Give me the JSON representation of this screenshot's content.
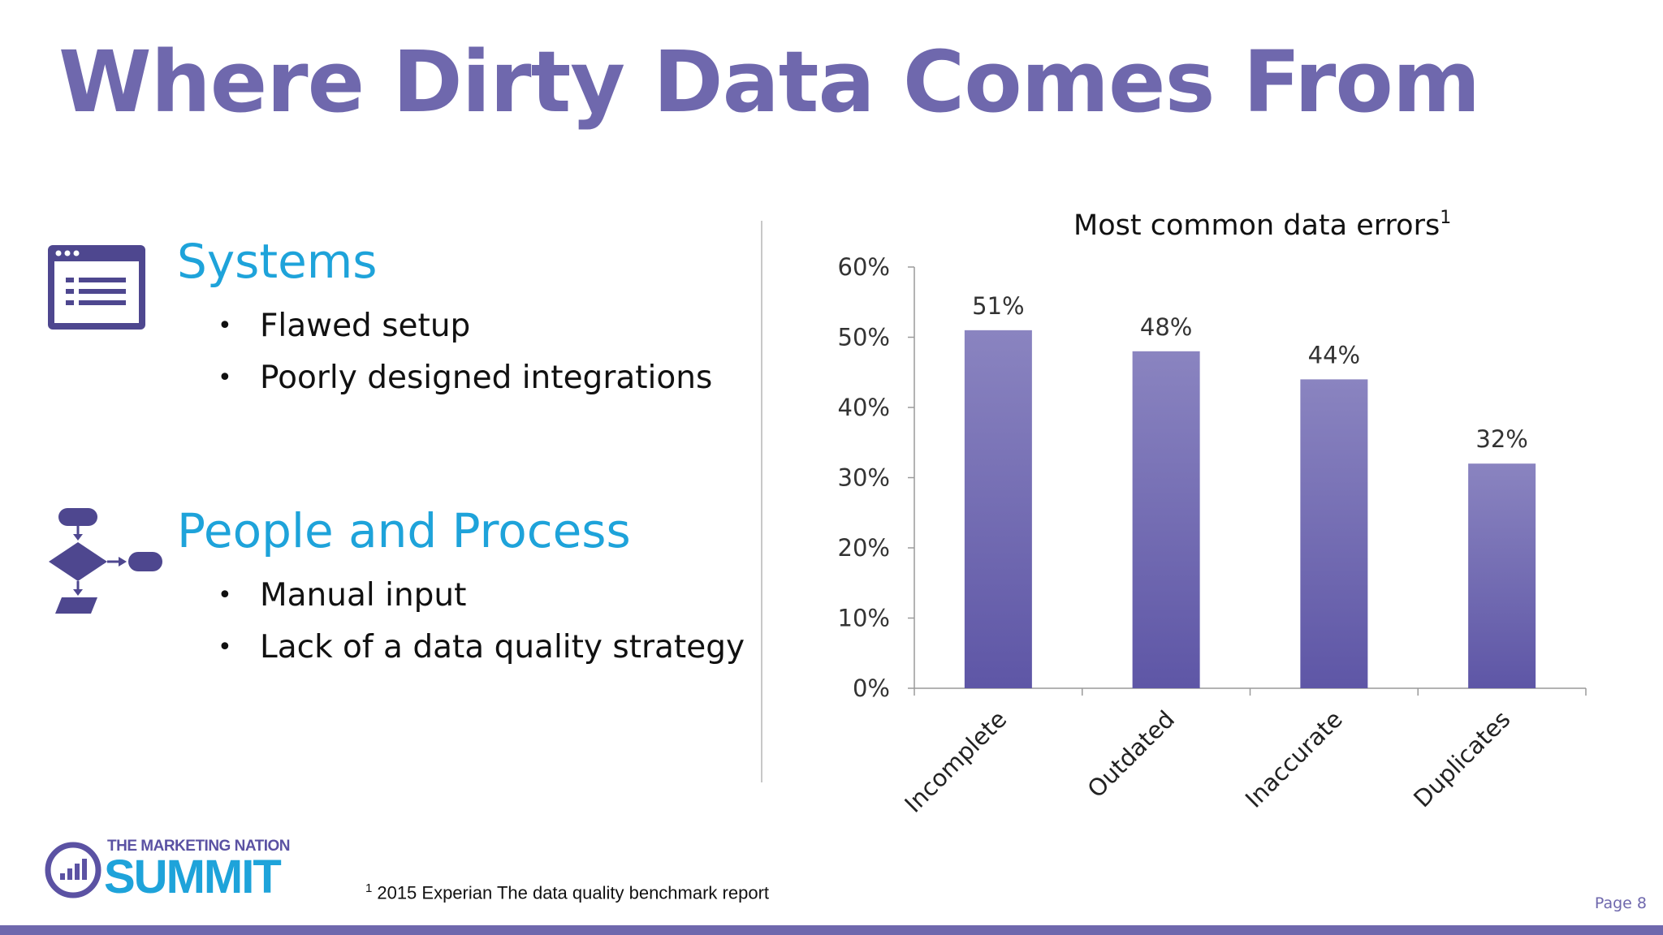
{
  "slide": {
    "title": "Where Dirty Data Comes From",
    "page_label": "Page 8"
  },
  "sections": [
    {
      "heading": "Systems",
      "icon": "browser-window-icon",
      "bullets": [
        "Flawed setup",
        "Poorly designed integrations"
      ]
    },
    {
      "heading": "People and Process",
      "icon": "flowchart-icon",
      "bullets": [
        "Manual input",
        "Lack of a data quality strategy"
      ]
    }
  ],
  "footnote": {
    "marker": "1",
    "text": "2015 Experian The data quality benchmark report"
  },
  "logo": {
    "tagline": "THE MARKETING NATION",
    "wordmark": "SUMMIT"
  },
  "colors": {
    "title": "#6f68ad",
    "heading": "#1ea3da",
    "bar_top": "#8a84c0",
    "bar_bottom": "#5e56a6",
    "footer_bar": "#6f68ad"
  },
  "chart_data": {
    "type": "bar",
    "title": "Most common data errors",
    "title_superscript": "1",
    "categories": [
      "Incomplete",
      "Outdated",
      "Inaccurate",
      "Duplicates"
    ],
    "values": [
      51,
      48,
      44,
      32
    ],
    "data_labels": [
      "51%",
      "48%",
      "44%",
      "32%"
    ],
    "ylim": [
      0,
      60
    ],
    "yticks": [
      0,
      10,
      20,
      30,
      40,
      50,
      60
    ],
    "ytick_labels": [
      "0%",
      "10%",
      "20%",
      "30%",
      "40%",
      "50%",
      "60%"
    ],
    "xlabel": "",
    "ylabel": "",
    "grid": false,
    "legend": false
  }
}
